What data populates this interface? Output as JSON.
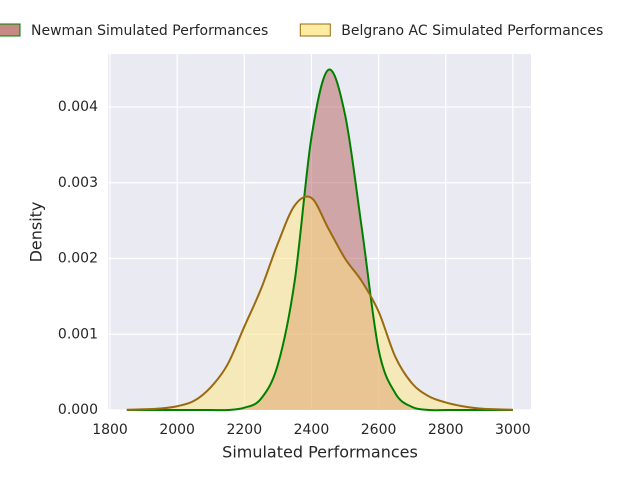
{
  "chart_data": {
    "type": "area",
    "xlabel": "Simulated Performances",
    "ylabel": "Density",
    "x": [
      1850,
      1900,
      1950,
      2000,
      2050,
      2100,
      2150,
      2200,
      2250,
      2300,
      2350,
      2400,
      2450,
      2500,
      2550,
      2600,
      2650,
      2700,
      2750,
      2800,
      2850,
      2900,
      2950,
      3000
    ],
    "series": [
      {
        "name": "Newman Simulated Performances",
        "color": "#b5605c",
        "edgecolor": "#008000",
        "values": [
          0,
          0,
          0,
          0,
          0,
          0,
          0,
          3e-05,
          0.00015,
          0.0006,
          0.0017,
          0.0036,
          0.00449,
          0.0039,
          0.0024,
          0.0008,
          0.00022,
          4e-05,
          0,
          0,
          0,
          0,
          0,
          0
        ]
      },
      {
        "name": "Belgrano AC Simulated Performances",
        "color": "#ffe680",
        "edgecolor": "#9a6a10",
        "values": [
          3e-06,
          1e-05,
          2e-05,
          5e-05,
          0.00012,
          0.0003,
          0.0006,
          0.0011,
          0.0016,
          0.0022,
          0.0027,
          0.0028,
          0.0024,
          0.002,
          0.0017,
          0.0013,
          0.0007,
          0.00035,
          0.00018,
          0.0001,
          5e-05,
          2e-05,
          1e-05,
          3e-06
        ]
      }
    ],
    "xlim": [
      1794,
      3054
    ],
    "ylim": [
      0,
      0.0047
    ],
    "xticks": [
      1800,
      2000,
      2200,
      2400,
      2600,
      2800,
      3000
    ],
    "yticks": [
      {
        "value": 0,
        "label": "0.000"
      },
      {
        "value": 0.001,
        "label": "0.001"
      },
      {
        "value": 0.002,
        "label": "0.002"
      },
      {
        "value": 0.003,
        "label": "0.003"
      },
      {
        "value": 0.004,
        "label": "0.004"
      }
    ],
    "grid": true,
    "legend": "top"
  }
}
